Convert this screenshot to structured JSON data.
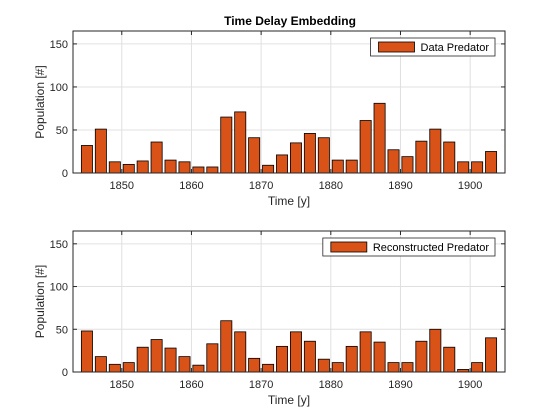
{
  "title": "Time Delay Embedding",
  "colors": {
    "bar_fill": "#d95319",
    "bar_edge": "#000000",
    "grid": "#e0e0e0",
    "axis": "#262626"
  },
  "chart_data": [
    {
      "type": "bar",
      "title": "Time Delay Embedding",
      "xlabel": "Time [y]",
      "ylabel": "Population [#]",
      "xlim": [
        1843,
        1905
      ],
      "ylim": [
        0,
        165
      ],
      "xticks": [
        1850,
        1860,
        1870,
        1880,
        1890,
        1900
      ],
      "yticks": [
        0,
        50,
        100,
        150
      ],
      "grid": true,
      "legend_position": "top-right",
      "series": [
        {
          "name": "Data Predator",
          "x": [
            1845,
            1847,
            1849,
            1851,
            1853,
            1855,
            1857,
            1859,
            1861,
            1863,
            1865,
            1867,
            1869,
            1871,
            1873,
            1875,
            1877,
            1879,
            1881,
            1883,
            1885,
            1887,
            1889,
            1891,
            1893,
            1895,
            1897,
            1899,
            1901,
            1903
          ],
          "values": [
            32,
            51,
            13,
            10,
            14,
            36,
            15,
            13,
            7,
            7,
            65,
            71,
            41,
            9,
            21,
            35,
            46,
            41,
            15,
            15,
            61,
            81,
            27,
            19,
            37,
            51,
            36,
            13,
            13,
            25
          ]
        }
      ]
    },
    {
      "type": "bar",
      "title": "",
      "xlabel": "Time [y]",
      "ylabel": "Population [#]",
      "xlim": [
        1843,
        1905
      ],
      "ylim": [
        0,
        165
      ],
      "xticks": [
        1850,
        1860,
        1870,
        1880,
        1890,
        1900
      ],
      "yticks": [
        0,
        50,
        100,
        150
      ],
      "grid": true,
      "legend_position": "top-right",
      "series": [
        {
          "name": "Reconstructed Predator",
          "x": [
            1845,
            1847,
            1849,
            1851,
            1853,
            1855,
            1857,
            1859,
            1861,
            1863,
            1865,
            1867,
            1869,
            1871,
            1873,
            1875,
            1877,
            1879,
            1881,
            1883,
            1885,
            1887,
            1889,
            1891,
            1893,
            1895,
            1897,
            1899,
            1901,
            1903
          ],
          "values": [
            48,
            18,
            9,
            11,
            29,
            38,
            28,
            18,
            8,
            33,
            60,
            47,
            16,
            9,
            30,
            47,
            36,
            15,
            11,
            30,
            47,
            35,
            11,
            11,
            36,
            50,
            29,
            3,
            11,
            40
          ]
        }
      ]
    }
  ]
}
